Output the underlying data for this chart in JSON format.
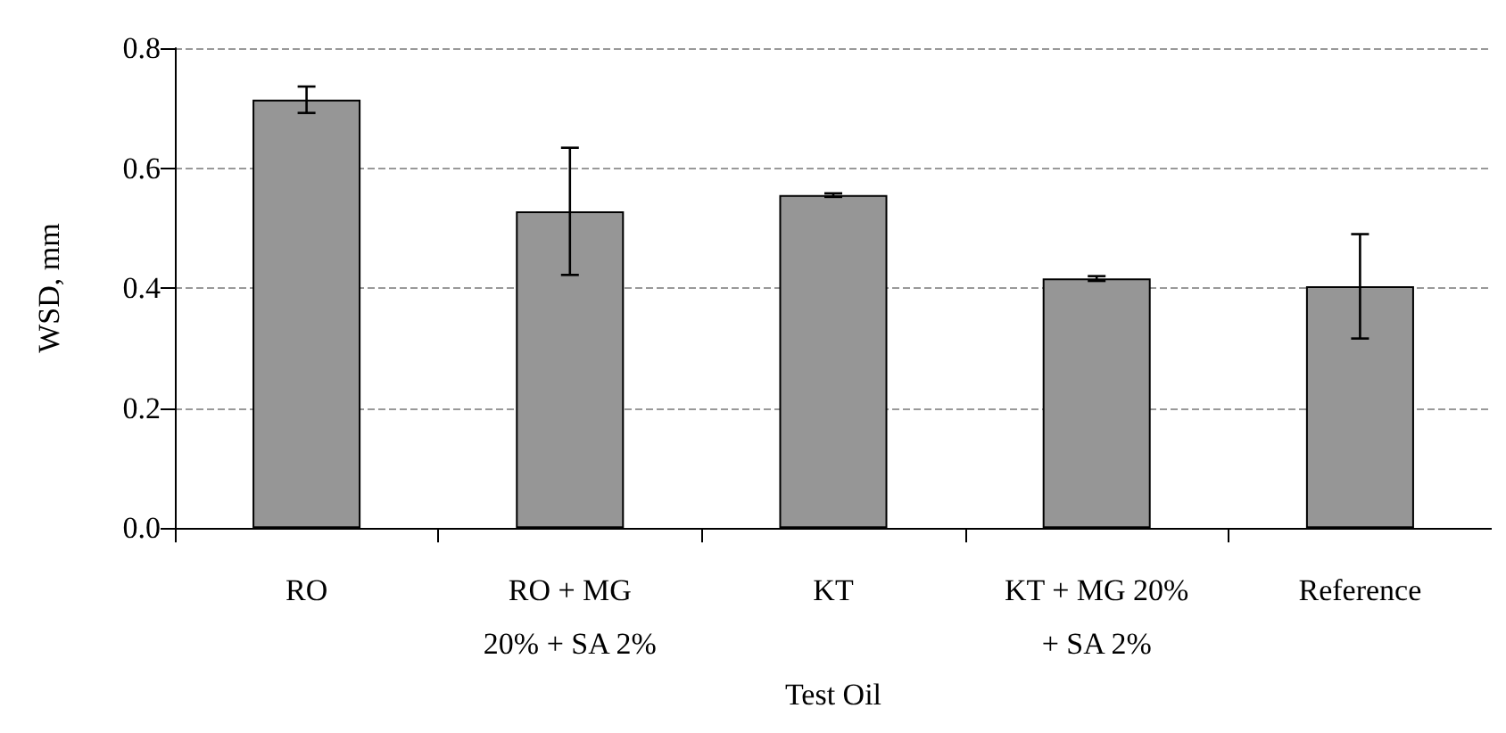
{
  "chart_data": {
    "type": "bar",
    "xlabel": "Test Oil",
    "ylabel": "WSD, mm",
    "categories": [
      "RO",
      "RO + MG\n20% + SA 2%",
      "KT",
      "KT + MG 20%\n+ SA 2%",
      "Reference"
    ],
    "values": [
      0.714,
      0.528,
      0.555,
      0.416,
      0.403
    ],
    "errors": [
      0.022,
      0.106,
      0.003,
      0.004,
      0.087
    ],
    "color": "#969696",
    "ylim": [
      0,
      0.8
    ],
    "yticks": [
      {
        "value": 0,
        "label": "0.0"
      },
      0.2,
      0.4,
      0.6,
      0.8
    ],
    "grid": "y"
  }
}
